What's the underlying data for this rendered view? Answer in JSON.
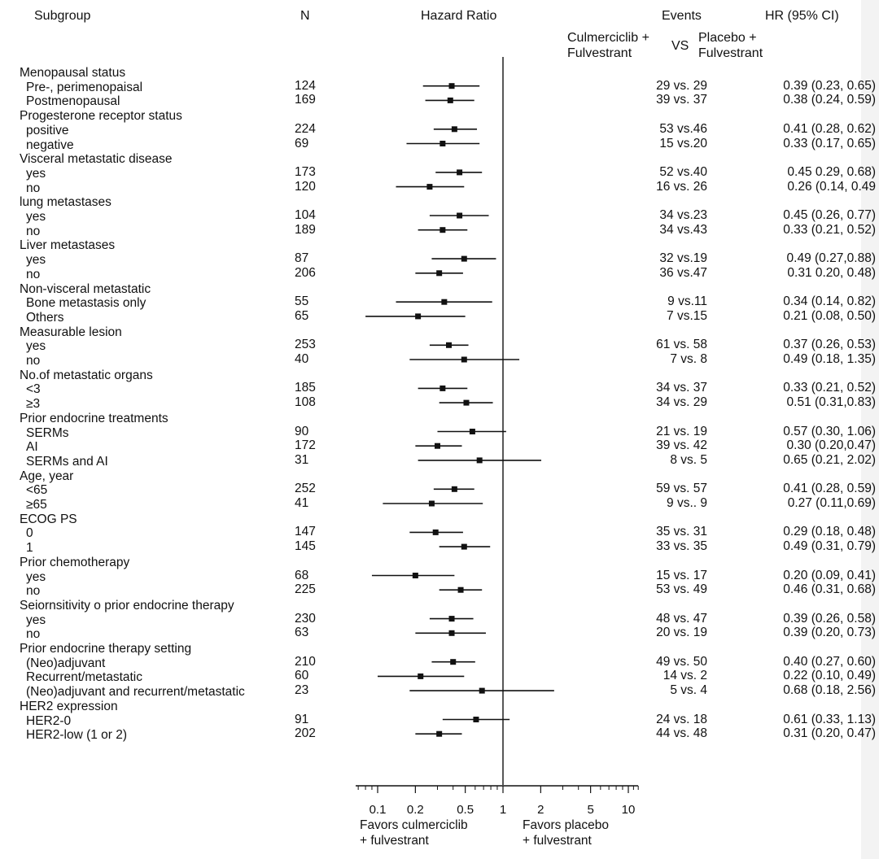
{
  "headers": {
    "subgroup": "Subgroup",
    "n": "N",
    "hazard_ratio": "Hazard Ratio",
    "events": "Events",
    "hr_ci": "HR (95% CI)",
    "arm1_line1": "Culmerciclib +",
    "arm1_line2": "Fulvestrant",
    "vs": "VS",
    "arm2_line1": "Placebo +",
    "arm2_line2": "Fulvestrant"
  },
  "favors": {
    "left_line1": "Favors culmerciclib",
    "left_line2": "+ fulvestrant",
    "right_line1": "Favors placebo",
    "right_line2": "+ fulvestrant"
  },
  "chart_data": {
    "type": "scatter",
    "subtype": "forest-plot",
    "x_scale": "log",
    "xlim": [
      0.06,
      13
    ],
    "xticks": [
      0.1,
      0.2,
      0.5,
      1,
      2,
      5,
      10
    ],
    "xtick_labels": [
      "0.1",
      "0.2",
      "0.5",
      "1",
      "2",
      "5",
      "10"
    ],
    "reference_line": 1,
    "groups": [
      {
        "label": "Menopausal status",
        "rows": [
          {
            "label": "Pre-, perimenopaisal",
            "n": "124",
            "events": "29 vs. 29",
            "hr_text": "0.39 (0.23, 0.65)",
            "hr": 0.39,
            "lo": 0.23,
            "hi": 0.65
          },
          {
            "label": "Postmenopausal",
            "n": "169",
            "events": "39 vs. 37",
            "hr_text": "0.38 (0.24, 0.59)",
            "hr": 0.38,
            "lo": 0.24,
            "hi": 0.59
          }
        ]
      },
      {
        "label": "Progesterone receptor status",
        "rows": [
          {
            "label": "positive",
            "n": "224",
            "events": "53 vs.46",
            "hr_text": "0.41 (0.28, 0.62)",
            "hr": 0.41,
            "lo": 0.28,
            "hi": 0.62
          },
          {
            "label": "negative",
            "n": "69",
            "events": "15 vs.20",
            "hr_text": "0.33 (0.17, 0.65)",
            "hr": 0.33,
            "lo": 0.17,
            "hi": 0.65
          }
        ]
      },
      {
        "label": "Visceral metastatic disease",
        "rows": [
          {
            "label": "yes",
            "n": "173",
            "events": "52 vs.40",
            "hr_text": "0.45 0.29, 0.68)",
            "hr": 0.45,
            "lo": 0.29,
            "hi": 0.68
          },
          {
            "label": "no",
            "n": "120",
            "events": "16 vs. 26",
            "hr_text": "0.26 (0.14, 0.49",
            "hr": 0.26,
            "lo": 0.14,
            "hi": 0.49
          }
        ]
      },
      {
        "label": "lung metastases",
        "rows": [
          {
            "label": "yes",
            "n": "104",
            "events": "34 vs.23",
            "hr_text": "0.45 (0.26, 0.77)",
            "hr": 0.45,
            "lo": 0.26,
            "hi": 0.77
          },
          {
            "label": "no",
            "n": "189",
            "events": "34 vs.43",
            "hr_text": "0.33 (0.21, 0.52)",
            "hr": 0.33,
            "lo": 0.21,
            "hi": 0.52
          }
        ]
      },
      {
        "label": "Liver metastases",
        "rows": [
          {
            "label": "yes",
            "n": "87",
            "events": "32 vs.19",
            "hr_text": "0.49 (0.27,0.88)",
            "hr": 0.49,
            "lo": 0.27,
            "hi": 0.88
          },
          {
            "label": "no",
            "n": "206",
            "events": "36 vs.47",
            "hr_text": "0.31 0.20, 0.48)",
            "hr": 0.31,
            "lo": 0.2,
            "hi": 0.48
          }
        ]
      },
      {
        "label": "Non-visceral metastatic",
        "rows": [
          {
            "label": "Bone metastasis only",
            "n": "55",
            "events": "9 vs.11",
            "hr_text": "0.34 (0.14, 0.82)",
            "hr": 0.34,
            "lo": 0.14,
            "hi": 0.82
          },
          {
            "label": "Others",
            "n": "65",
            "events": "7 vs.15",
            "hr_text": "0.21 (0.08, 0.50)",
            "hr": 0.21,
            "lo": 0.08,
            "hi": 0.5
          }
        ]
      },
      {
        "label": "Measurable lesion",
        "rows": [
          {
            "label": "yes",
            "n": "253",
            "events": "61 vs. 58",
            "hr_text": "0.37 (0.26, 0.53)",
            "hr": 0.37,
            "lo": 0.26,
            "hi": 0.53
          },
          {
            "label": "no",
            "n": "40",
            "events": "7 vs. 8",
            "hr_text": "0.49 (0.18, 1.35)",
            "hr": 0.49,
            "lo": 0.18,
            "hi": 1.35
          }
        ]
      },
      {
        "label": "No.of metastatic organs",
        "rows": [
          {
            "label": "<3",
            "n": "185",
            "events": "34 vs. 37",
            "hr_text": "0.33 (0.21, 0.52)",
            "hr": 0.33,
            "lo": 0.21,
            "hi": 0.52
          },
          {
            "label": "≥3",
            "n": "108",
            "events": "34 vs. 29",
            "hr_text": "0.51 (0.31,0.83)",
            "hr": 0.51,
            "lo": 0.31,
            "hi": 0.83
          }
        ]
      },
      {
        "label": "Prior endocrine treatments",
        "rows": [
          {
            "label": "SERMs",
            "n": "90",
            "events": "21 vs. 19",
            "hr_text": "0.57 (0.30, 1.06)",
            "hr": 0.57,
            "lo": 0.3,
            "hi": 1.06
          },
          {
            "label": "AI",
            "n": "172",
            "events": "39 vs. 42",
            "hr_text": "0.30 (0.20,0.47)",
            "hr": 0.3,
            "lo": 0.2,
            "hi": 0.47
          },
          {
            "label": "SERMs and AI",
            "n": "31",
            "events": "8 vs. 5",
            "hr_text": "0.65 (0.21, 2.02)",
            "hr": 0.65,
            "lo": 0.21,
            "hi": 2.02
          }
        ]
      },
      {
        "label": "Age, year",
        "rows": [
          {
            "label": "<65",
            "n": "252",
            "events": "59 vs. 57",
            "hr_text": "0.41 (0.28, 0.59)",
            "hr": 0.41,
            "lo": 0.28,
            "hi": 0.59
          },
          {
            "label": "≥65",
            "n": "41",
            "events": "9 vs.. 9",
            "hr_text": "0.27 (0.11,0.69)",
            "hr": 0.27,
            "lo": 0.11,
            "hi": 0.69
          }
        ]
      },
      {
        "label": "ECOG PS",
        "rows": [
          {
            "label": "0",
            "n": "147",
            "events": "35 vs. 31",
            "hr_text": "0.29 (0.18, 0.48)",
            "hr": 0.29,
            "lo": 0.18,
            "hi": 0.48
          },
          {
            "label": "1",
            "n": "145",
            "events": "33 vs. 35",
            "hr_text": "0.49 (0.31, 0.79)",
            "hr": 0.49,
            "lo": 0.31,
            "hi": 0.79
          }
        ]
      },
      {
        "label": "Prior chemotherapy",
        "rows": [
          {
            "label": "yes",
            "n": "68",
            "events": "15 vs. 17",
            "hr_text": "0.20 (0.09, 0.41)",
            "hr": 0.2,
            "lo": 0.09,
            "hi": 0.41
          },
          {
            "label": "no",
            "n": "225",
            "events": "53 vs. 49",
            "hr_text": "0.46 (0.31, 0.68)",
            "hr": 0.46,
            "lo": 0.31,
            "hi": 0.68
          }
        ]
      },
      {
        "label": "Seiornsitivity o prior endocrine therapy",
        "rows": [
          {
            "label": "yes",
            "n": "230",
            "events": "48 vs. 47",
            "hr_text": "0.39 (0.26, 0.58)",
            "hr": 0.39,
            "lo": 0.26,
            "hi": 0.58
          },
          {
            "label": "no",
            "n": "63",
            "events": "20 vs. 19",
            "hr_text": "0.39 (0.20, 0.73)",
            "hr": 0.39,
            "lo": 0.2,
            "hi": 0.73
          }
        ]
      },
      {
        "label": "Prior endocrine therapy setting",
        "rows": [
          {
            "label": "(Neo)adjuvant",
            "n": "210",
            "events": "49 vs. 50",
            "hr_text": "0.40 (0.27, 0.60)",
            "hr": 0.4,
            "lo": 0.27,
            "hi": 0.6
          },
          {
            "label": "Recurrent/metastatic",
            "n": "60",
            "events": "14 vs. 2",
            "hr_text": "0.22 (0.10, 0.49)",
            "hr": 0.22,
            "lo": 0.1,
            "hi": 0.49
          },
          {
            "label": "(Neo)adjuvant and recurrent/metastatic",
            "n": "23",
            "events": "5 vs. 4",
            "hr_text": "0.68 (0.18, 2.56)",
            "hr": 0.68,
            "lo": 0.18,
            "hi": 2.56
          }
        ]
      },
      {
        "label": "HER2 expression",
        "rows": [
          {
            "label": "HER2-0",
            "n": "91",
            "events": "24 vs. 18",
            "hr_text": "0.61 (0.33, 1.13)",
            "hr": 0.61,
            "lo": 0.33,
            "hi": 1.13
          },
          {
            "label": "HER2-low (1 or 2)",
            "n": "202",
            "events": "44 vs. 48",
            "hr_text": "0.31 (0.20, 0.47)",
            "hr": 0.31,
            "lo": 0.2,
            "hi": 0.47
          }
        ]
      }
    ]
  }
}
